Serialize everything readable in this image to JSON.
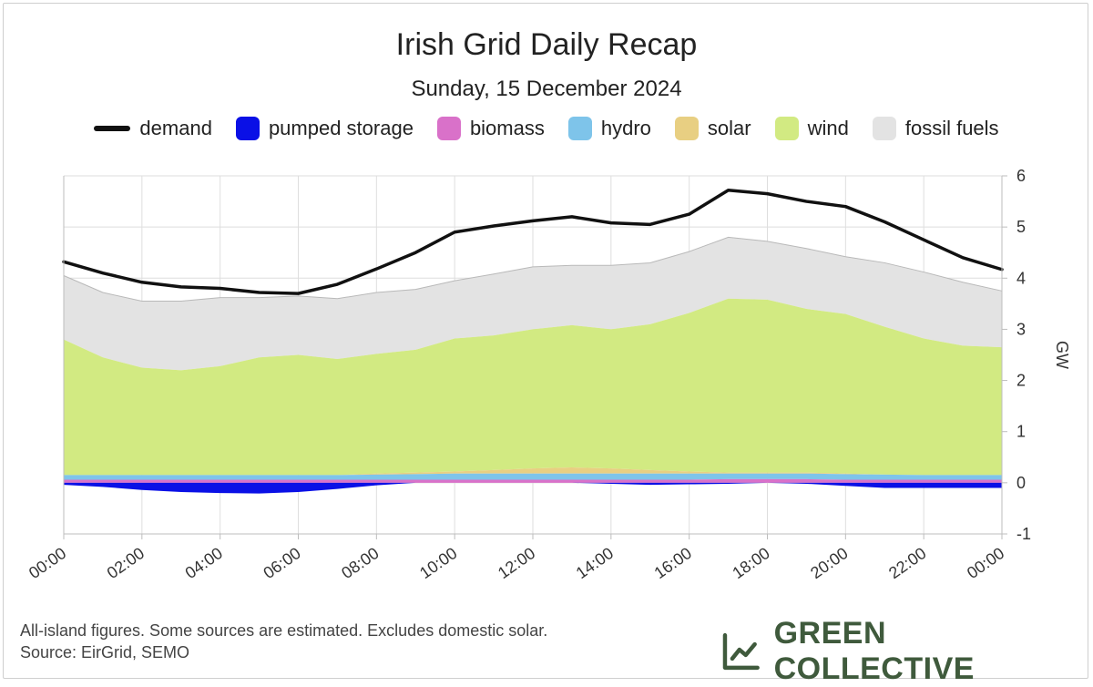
{
  "chart_data": {
    "type": "area",
    "title": "Irish Grid Daily Recap",
    "subtitle": "Sunday, 15 December 2024",
    "ylabel": "GW",
    "ylim": [
      -1,
      6
    ],
    "yticks": [
      "6",
      "5",
      "4",
      "3",
      "2",
      "1",
      "0",
      "-1"
    ],
    "xlim": [
      0,
      24
    ],
    "xticks": [
      "00:00",
      "02:00",
      "04:00",
      "06:00",
      "08:00",
      "10:00",
      "12:00",
      "14:00",
      "16:00",
      "18:00",
      "20:00",
      "22:00",
      "00:00"
    ],
    "legend": [
      {
        "name": "demand",
        "color": "#111111",
        "kind": "line"
      },
      {
        "name": "pumped storage",
        "color": "#0a10e6",
        "kind": "box"
      },
      {
        "name": "biomass",
        "color": "#d971c9",
        "kind": "box"
      },
      {
        "name": "hydro",
        "color": "#7ec4ea",
        "kind": "box"
      },
      {
        "name": "solar",
        "color": "#e8cf82",
        "kind": "box"
      },
      {
        "name": "wind",
        "color": "#d2ea82",
        "kind": "box"
      },
      {
        "name": "fossil fuels",
        "color": "#e3e3e3",
        "kind": "box"
      }
    ],
    "x": [
      0,
      1,
      2,
      3,
      4,
      5,
      6,
      7,
      8,
      9,
      10,
      11,
      12,
      13,
      14,
      15,
      16,
      17,
      18,
      19,
      20,
      21,
      22,
      23,
      24
    ],
    "series": [
      {
        "name": "demand",
        "values": [
          4.32,
          4.1,
          3.92,
          3.83,
          3.8,
          3.72,
          3.7,
          3.88,
          4.18,
          4.5,
          4.9,
          5.02,
          5.12,
          5.2,
          5.08,
          5.05,
          5.25,
          5.72,
          5.65,
          5.5,
          5.4,
          5.1,
          4.75,
          4.4,
          4.17
        ]
      },
      {
        "name": "fossil fuels total",
        "values": [
          4.05,
          3.72,
          3.55,
          3.55,
          3.62,
          3.62,
          3.65,
          3.6,
          3.72,
          3.78,
          3.95,
          4.08,
          4.22,
          4.25,
          4.25,
          4.3,
          4.52,
          4.8,
          4.72,
          4.58,
          4.42,
          4.3,
          4.12,
          3.92,
          3.75
        ]
      },
      {
        "name": "wind total",
        "values": [
          2.8,
          2.45,
          2.25,
          2.2,
          2.28,
          2.45,
          2.5,
          2.42,
          2.52,
          2.6,
          2.82,
          2.88,
          3.0,
          3.08,
          3.0,
          3.1,
          3.32,
          3.6,
          3.58,
          3.4,
          3.3,
          3.05,
          2.82,
          2.68,
          2.65
        ]
      },
      {
        "name": "solar total",
        "values": [
          0.15,
          0.15,
          0.15,
          0.15,
          0.15,
          0.15,
          0.15,
          0.15,
          0.18,
          0.2,
          0.22,
          0.25,
          0.28,
          0.3,
          0.28,
          0.25,
          0.22,
          0.2,
          0.2,
          0.2,
          0.18,
          0.16,
          0.15,
          0.15,
          0.15
        ]
      },
      {
        "name": "hydro total",
        "values": [
          0.15,
          0.15,
          0.15,
          0.15,
          0.15,
          0.15,
          0.15,
          0.15,
          0.16,
          0.17,
          0.18,
          0.18,
          0.18,
          0.18,
          0.18,
          0.18,
          0.18,
          0.18,
          0.18,
          0.18,
          0.17,
          0.16,
          0.15,
          0.15,
          0.15
        ]
      },
      {
        "name": "biomass total",
        "values": [
          0.06,
          0.06,
          0.06,
          0.06,
          0.06,
          0.06,
          0.06,
          0.06,
          0.06,
          0.06,
          0.06,
          0.06,
          0.06,
          0.06,
          0.06,
          0.06,
          0.06,
          0.07,
          0.07,
          0.07,
          0.06,
          0.06,
          0.06,
          0.06,
          0.06
        ]
      },
      {
        "name": "pumped storage",
        "values": [
          -0.04,
          -0.08,
          -0.14,
          -0.18,
          -0.2,
          -0.21,
          -0.18,
          -0.12,
          -0.05,
          0.0,
          0.0,
          0.0,
          0.0,
          0.0,
          -0.02,
          -0.04,
          -0.03,
          -0.02,
          0.0,
          -0.02,
          -0.06,
          -0.1,
          -0.1,
          -0.1,
          -0.1
        ]
      }
    ]
  },
  "footer": {
    "line1": "All-island figures. Some sources are estimated. Excludes domestic solar.",
    "line2": "Source: EirGrid, SEMO"
  },
  "brand": {
    "name": "GREEN COLLECTIVE",
    "icon": "line-chart-icon",
    "color": "#3f5a3c"
  }
}
